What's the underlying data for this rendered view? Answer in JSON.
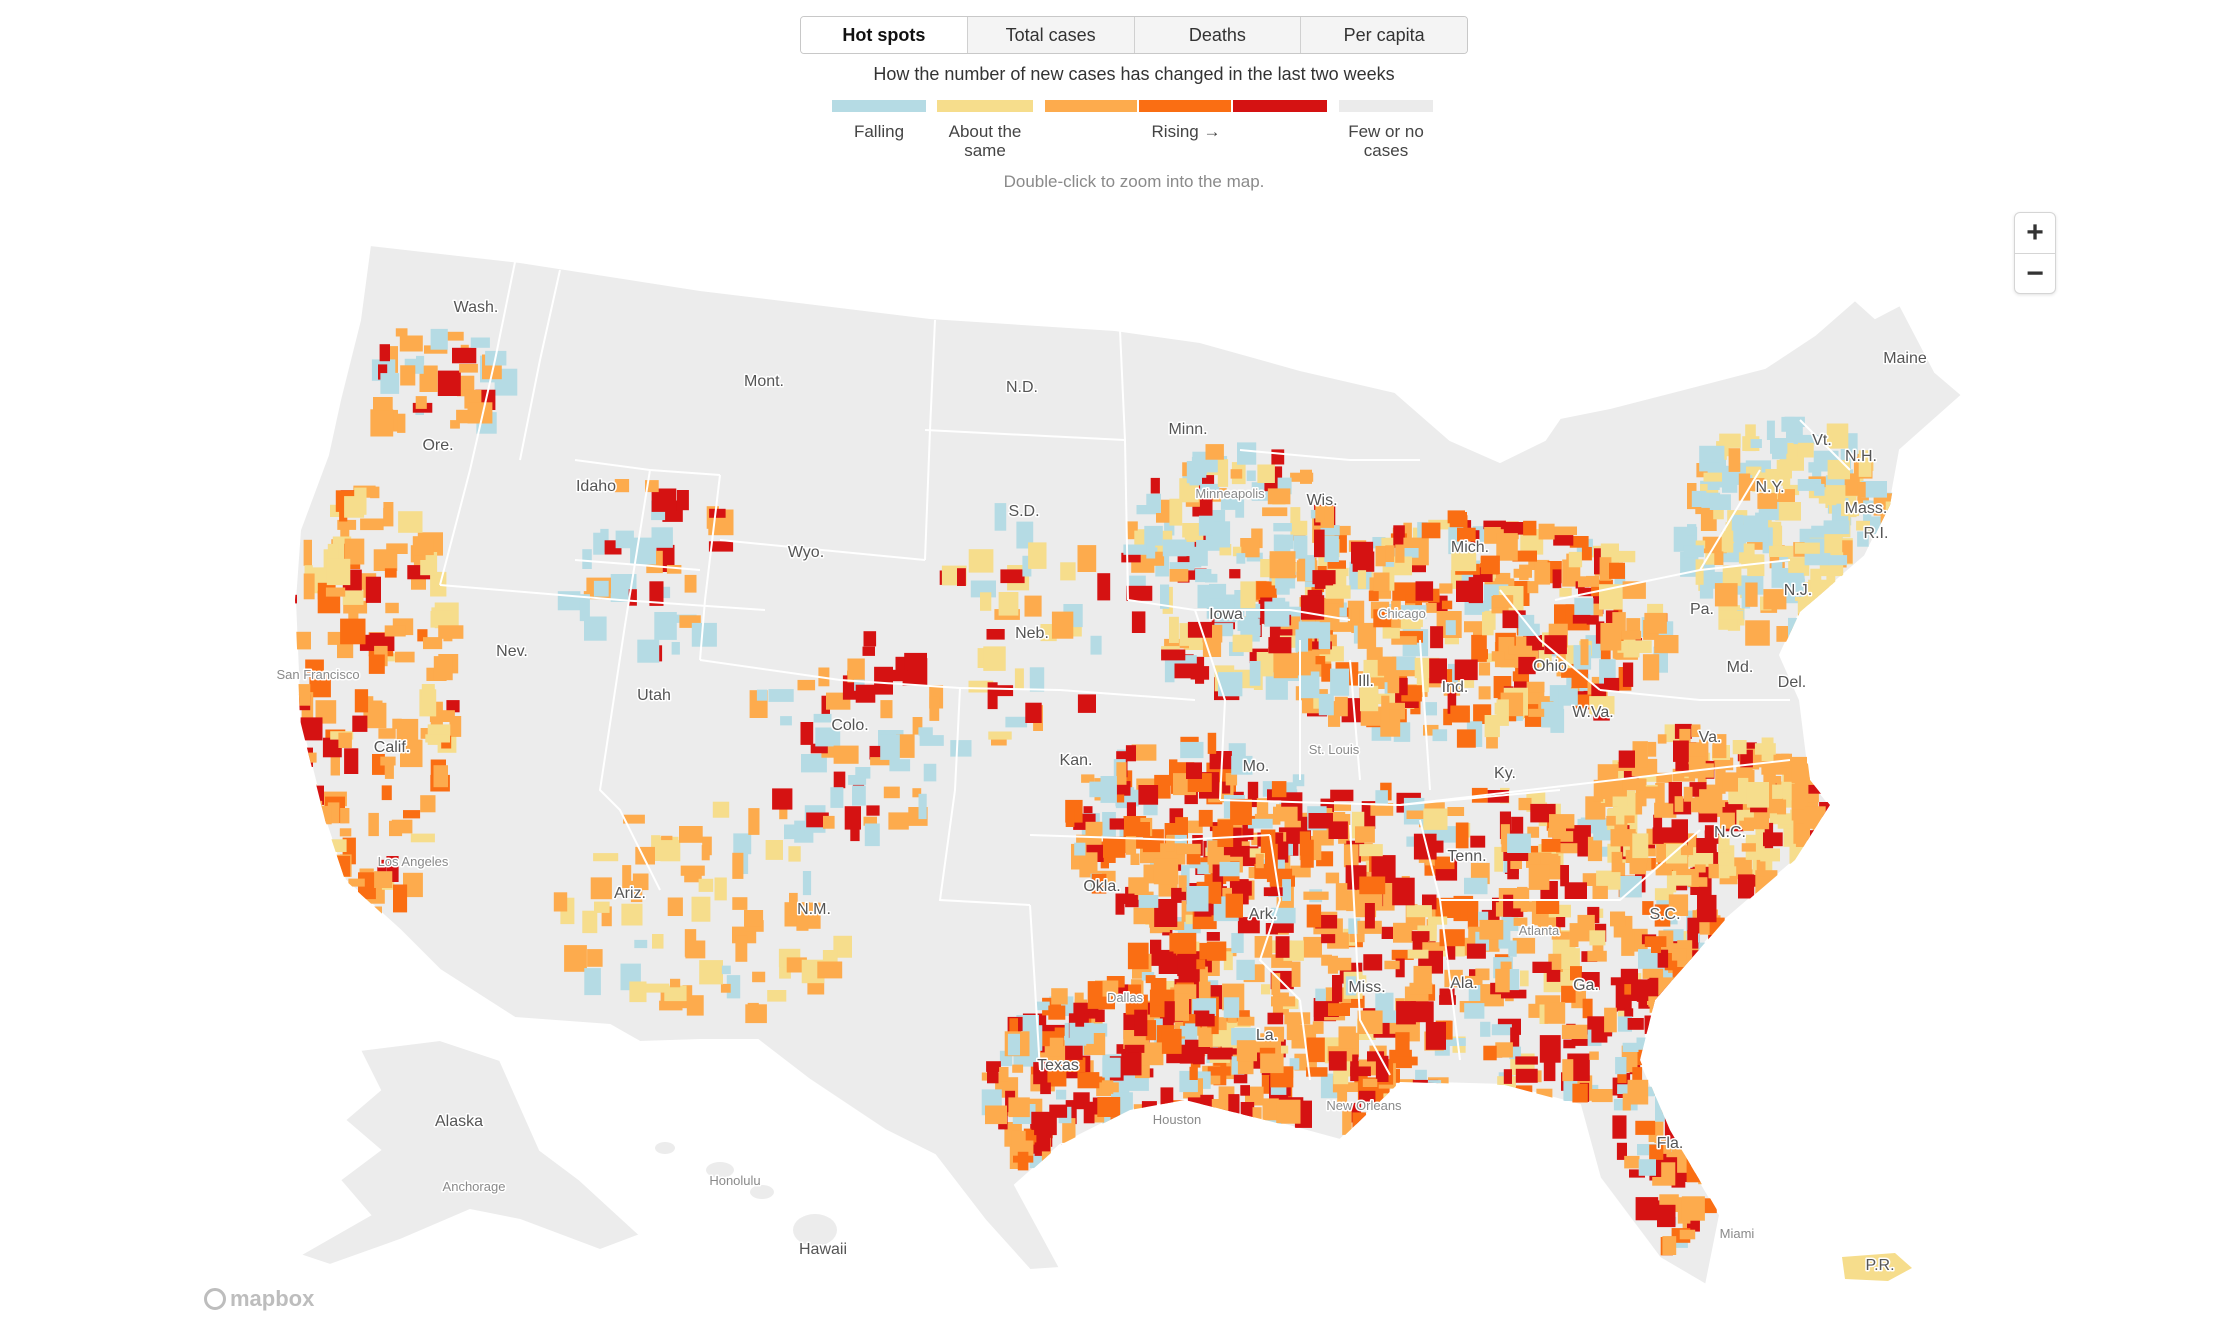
{
  "tabs": [
    {
      "label": "Hot spots",
      "active": true
    },
    {
      "label": "Total cases",
      "active": false
    },
    {
      "label": "Deaths",
      "active": false
    },
    {
      "label": "Per capita",
      "active": false
    }
  ],
  "legend": {
    "title": "How the number of new cases has changed in the last two weeks",
    "falling": "Falling",
    "same": "About the same",
    "rising": "Rising →",
    "few": "Few or no cases",
    "colors": {
      "falling": "#b5dbe4",
      "same": "#f6dd8c",
      "rising1": "#fdab4d",
      "rising2": "#fa6e13",
      "rising3": "#d51212",
      "few": "#ebebeb"
    }
  },
  "hint": "Double-click to zoom into the map.",
  "zoom": {
    "in": "+",
    "out": "−"
  },
  "attribution": "mapbox",
  "map": {
    "land_color": "#ececec",
    "state_labels": [
      "Wash.",
      "Mont.",
      "N.D.",
      "Minn.",
      "Maine",
      "Ore.",
      "Idaho",
      "Wyo.",
      "S.D.",
      "Wis.",
      "Vt.",
      "N.H.",
      "N.Y.",
      "Mass.",
      "R.I.",
      "Mich.",
      "Iowa",
      "Neb.",
      "Nev.",
      "Utah",
      "Colo.",
      "Pa.",
      "N.J.",
      "Ohio",
      "Md.",
      "Del.",
      "Ill.",
      "Ind.",
      "W.Va.",
      "Calif.",
      "Kan.",
      "Mo.",
      "Va.",
      "Ky.",
      "N.C.",
      "Tenn.",
      "Okla.",
      "N.M.",
      "Ariz.",
      "Ark.",
      "S.C.",
      "Miss.",
      "Ala.",
      "Ga.",
      "La.",
      "Texas",
      "Fla.",
      "Alaska",
      "Hawaii",
      "P.R."
    ],
    "city_labels": [
      "Minneapolis",
      "Chicago",
      "San Francisco",
      "St. Louis",
      "Los Angeles",
      "Atlanta",
      "Dallas",
      "Houston",
      "New Orleans",
      "Honolulu",
      "Anchorage",
      "Miami"
    ]
  }
}
